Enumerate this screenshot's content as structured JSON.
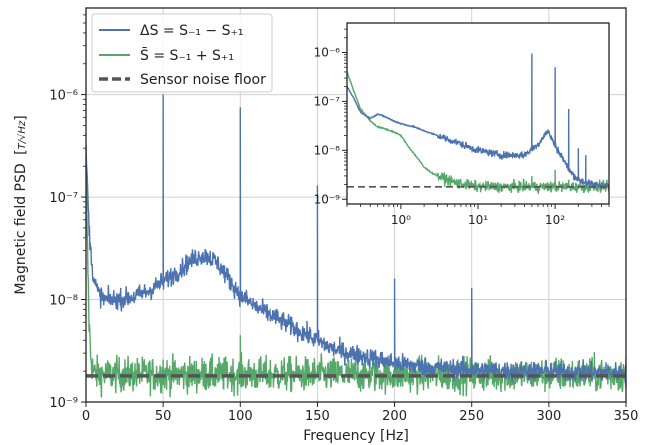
{
  "chart_data": [
    {
      "type": "line",
      "panel": "main",
      "xlabel": "Frequency [Hz]",
      "ylabel": "Magnetic field PSD",
      "ylabel_unit": "T/√Hz",
      "xlim": [
        0,
        350
      ],
      "ylim": [
        1e-09,
        7e-06
      ],
      "yscale": "log",
      "grid": true,
      "x_ticks": [
        0,
        50,
        100,
        150,
        200,
        250,
        300,
        350
      ],
      "y_ticks": [
        1e-09,
        1e-08,
        1e-07,
        1e-06
      ],
      "y_tick_labels": [
        "10⁻⁹",
        "10⁻⁸",
        "10⁻⁷",
        "10⁻⁶"
      ],
      "legend_position": "upper-left",
      "series": [
        {
          "name": "ΔS = S₋₁ − S₊₁",
          "color": "#4c72b0",
          "baseline": {
            "x": [
              0,
              1,
              2,
              3,
              5,
              8,
              12,
              20,
              30,
              40,
              50,
              60,
              65,
              70,
              75,
              80,
              85,
              90,
              95,
              100,
              110,
              120,
              130,
              140,
              150,
              160,
              170,
              180,
              190,
              200,
              220,
              240,
              260,
              280,
              300,
              320,
              350
            ],
            "y": [
              3e-07,
              1.2e-07,
              5e-08,
              3e-08,
              1.6e-08,
              1.15e-08,
              1e-08,
              1e-08,
              1.05e-08,
              1.2e-08,
              1.5e-08,
              1.9e-08,
              2.2e-08,
              2.5e-08,
              2.7e-08,
              2.6e-08,
              2.3e-08,
              1.8e-08,
              1.4e-08,
              1.1e-08,
              8.5e-09,
              7e-09,
              5.8e-09,
              4.8e-09,
              4e-09,
              3.3e-09,
              3e-09,
              2.8e-09,
              2.6e-09,
              2.4e-09,
              2.2e-09,
              2.1e-09,
              2.05e-09,
              2e-09,
              2e-09,
              1.95e-09,
              1.95e-09
            ]
          },
          "peaks": [
            {
              "x": 50,
              "y": 1e-06
            },
            {
              "x": 100,
              "y": 7.5e-07
            },
            {
              "x": 150,
              "y": 1.3e-07
            },
            {
              "x": 200,
              "y": 1.6e-08
            },
            {
              "x": 250,
              "y": 1.3e-08
            }
          ]
        },
        {
          "name": "S̄ = S₋₁ + S₊₁",
          "color": "#55a868",
          "baseline": {
            "x": [
              0,
              1,
              2,
              3,
              4,
              5,
              8,
              350
            ],
            "y": [
              2e-07,
              3e-08,
              6e-09,
              3e-09,
              2.2e-09,
              1.9e-09,
              1.85e-09,
              1.85e-09
            ]
          },
          "peaks": [
            {
              "x": 50,
              "y": 2.6e-09
            },
            {
              "x": 100,
              "y": 4.5e-09
            },
            {
              "x": 150,
              "y": 2.3e-09
            },
            {
              "x": 200,
              "y": 2.2e-09
            },
            {
              "x": 250,
              "y": 2.3e-09
            }
          ]
        },
        {
          "name": "Sensor noise floor",
          "color": "#555555",
          "style": "dashed",
          "x": [
            0,
            350
          ],
          "y": [
            1.8e-09,
            1.8e-09
          ]
        }
      ]
    },
    {
      "type": "line",
      "panel": "inset",
      "xscale": "log",
      "yscale": "log",
      "xlim": [
        0.2,
        500
      ],
      "ylim": [
        8e-10,
        4e-06
      ],
      "grid": false,
      "x_ticks": [
        1,
        10,
        100
      ],
      "x_tick_labels": [
        "10⁰",
        "10¹",
        "10²"
      ],
      "y_ticks": [
        1e-09,
        1e-08,
        1e-07,
        1e-06
      ],
      "y_tick_labels": [
        "10⁻⁹",
        "10⁻⁸",
        "10⁻⁷",
        "10⁻⁶"
      ],
      "series": [
        {
          "color": "#4c72b0",
          "baseline": {
            "x": [
              0.2,
              0.25,
              0.3,
              0.4,
              0.5,
              0.6,
              0.8,
              1,
              1.5,
              2,
              3,
              5,
              10,
              20,
              40,
              60,
              70,
              80,
              90,
              100,
              120,
              150,
              200,
              300,
              500
            ],
            "y": [
              2e-07,
              1.1e-07,
              6e-08,
              4.5e-08,
              5.5e-08,
              5e-08,
              4e-08,
              3.5e-08,
              3e-08,
              2.5e-08,
              2e-08,
              1.5e-08,
              1e-08,
              8e-09,
              8e-09,
              1.3e-08,
              1.9e-08,
              2.5e-08,
              1.8e-08,
              1.2e-08,
              8e-09,
              4e-09,
              2.5e-09,
              2e-09,
              1.9e-09
            ]
          },
          "peaks": [
            {
              "x": 50,
              "y": 9.5e-07
            },
            {
              "x": 100,
              "y": 5e-07
            },
            {
              "x": 150,
              "y": 7e-08
            },
            {
              "x": 200,
              "y": 1.1e-08
            },
            {
              "x": 250,
              "y": 8e-09
            }
          ]
        },
        {
          "color": "#55a868",
          "baseline": {
            "x": [
              0.2,
              0.25,
              0.3,
              0.4,
              0.5,
              0.6,
              0.8,
              1,
              1.3,
              1.7,
              2,
              2.5,
              3,
              4,
              5,
              8,
              10,
              20,
              50,
              500
            ],
            "y": [
              4e-07,
              1.5e-07,
              7e-08,
              4e-08,
              3e-08,
              2.8e-08,
              2.4e-08,
              2e-08,
              1.1e-08,
              6.5e-09,
              4.5e-09,
              3.5e-09,
              3e-09,
              2.5e-09,
              2.2e-09,
              1.9e-09,
              1.8e-09,
              1.8e-09,
              1.8e-09,
              1.8e-09
            ]
          },
          "peaks": [
            {
              "x": 50,
              "y": 3e-09
            },
            {
              "x": 100,
              "y": 4e-09
            },
            {
              "x": 150,
              "y": 2.5e-09
            }
          ]
        },
        {
          "color": "#555555",
          "style": "dashed",
          "x": [
            0.2,
            500
          ],
          "y": [
            1.8e-09,
            1.8e-09
          ]
        }
      ]
    }
  ]
}
